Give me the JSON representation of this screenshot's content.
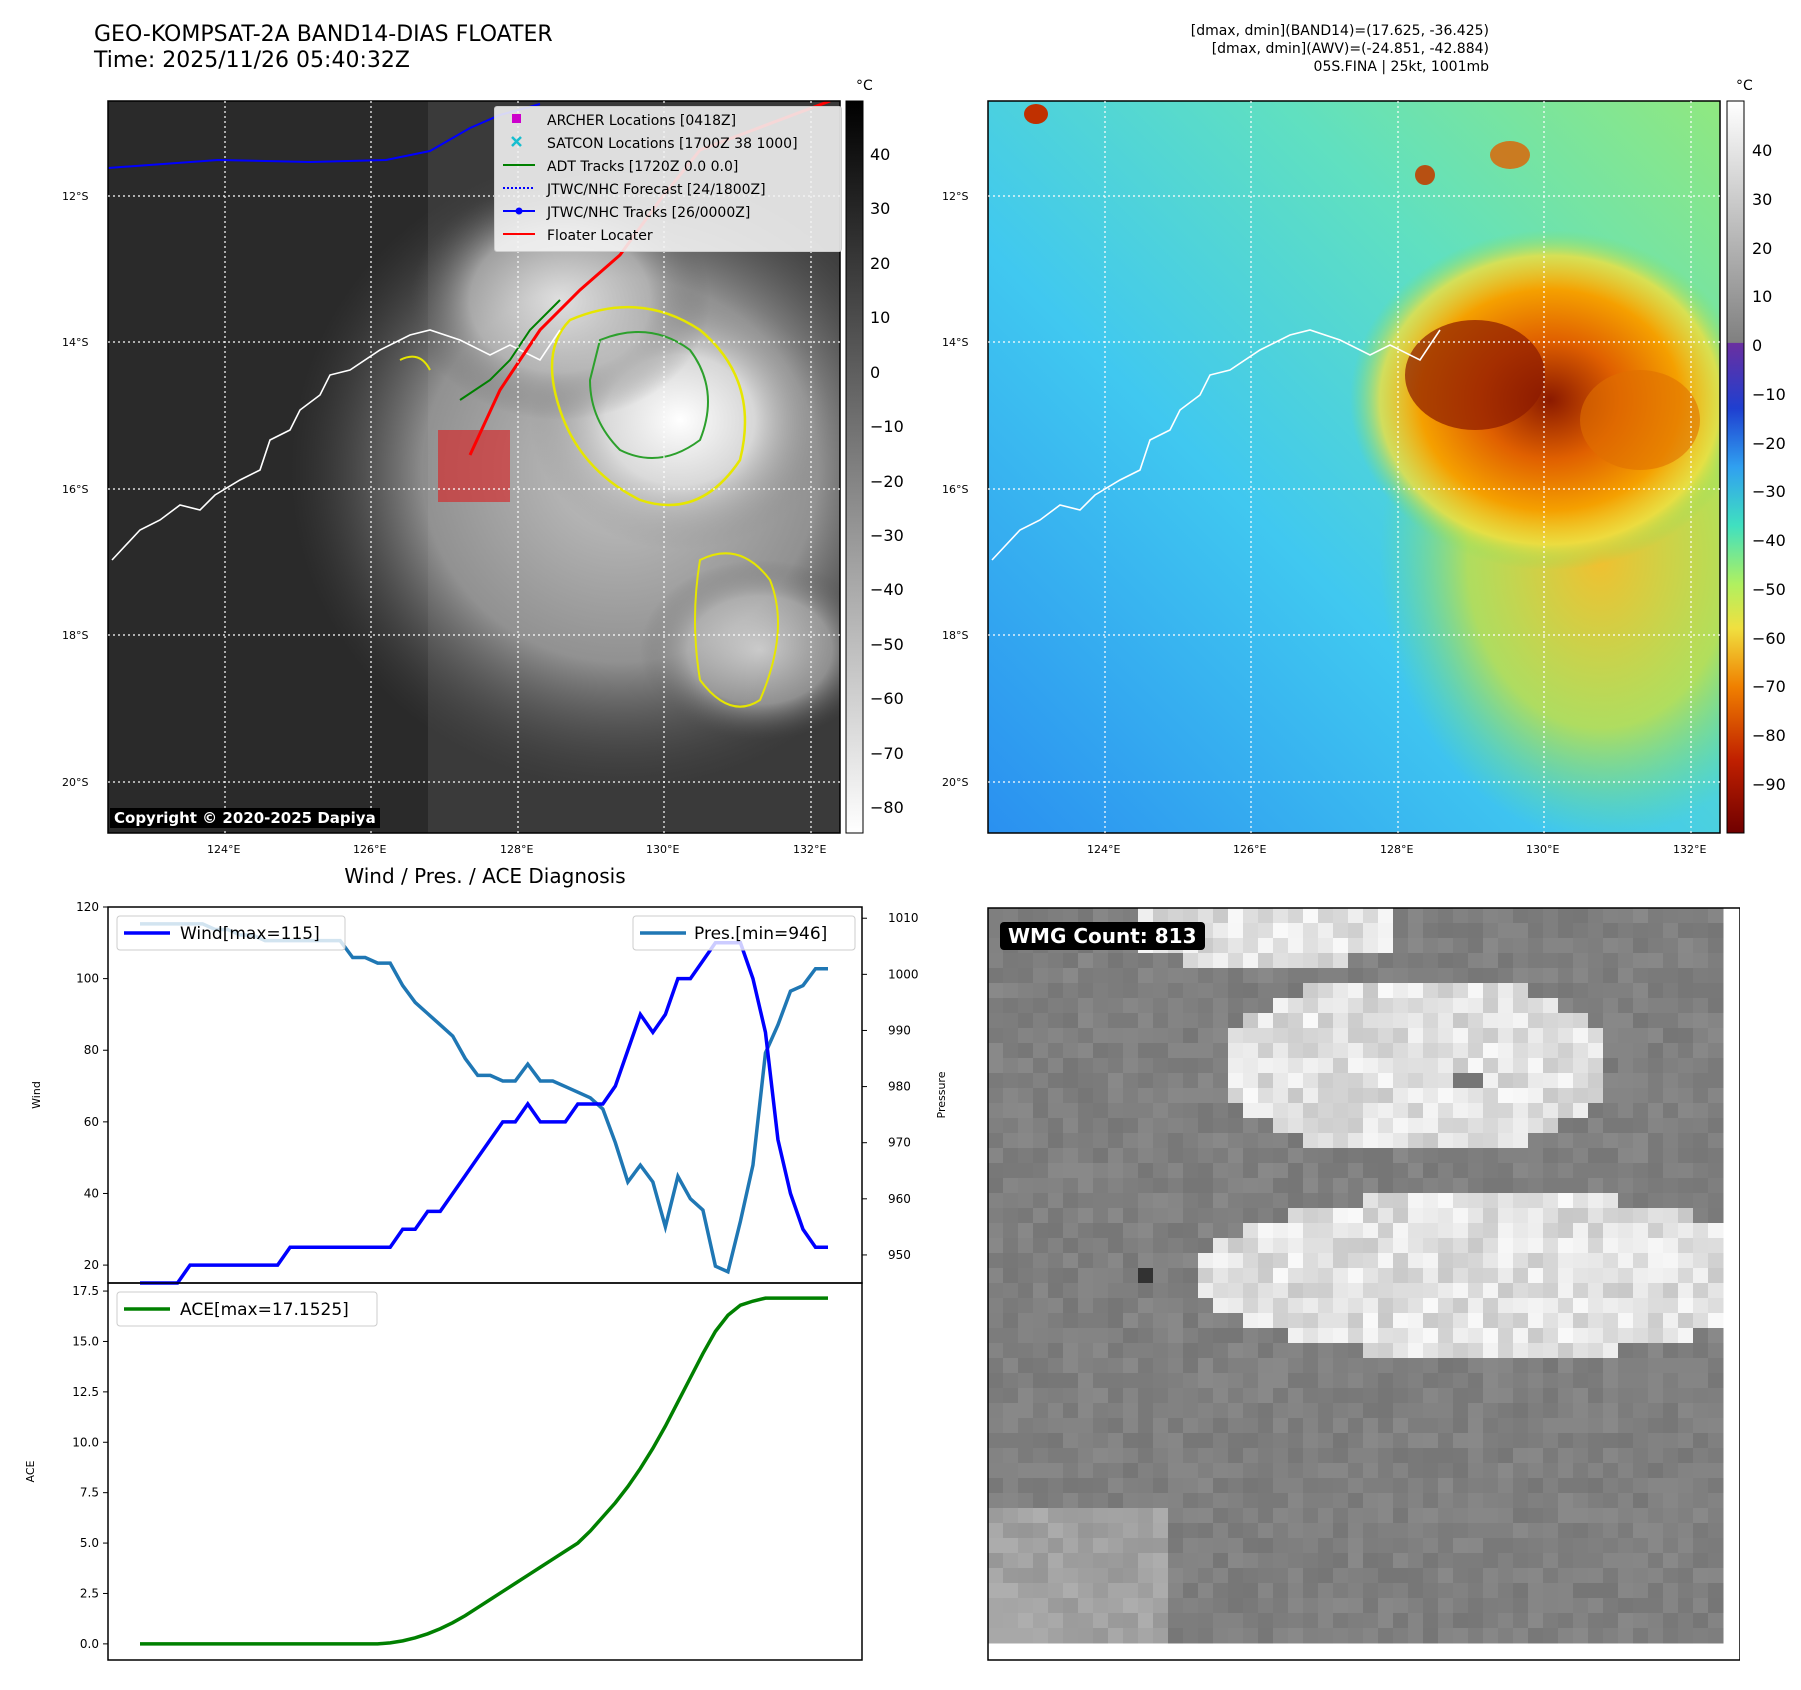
{
  "header": {
    "title_line1": "GEO-KOMPSAT-2A BAND14-DIAS FLOATER",
    "title_line2": "Time: 2025/11/26 05:40:32Z",
    "info_line1": "[dmax, dmin](BAND14)=(17.625, -36.425)",
    "info_line2": "[dmax, dmin](AWV)=(-24.851, -42.884)",
    "info_line3": "05S.FINA | 25kt, 1001mb"
  },
  "maps": {
    "lat_labels": [
      "12°S",
      "14°S",
      "16°S",
      "18°S",
      "20°S"
    ],
    "lon_labels": [
      "124°E",
      "126°E",
      "128°E",
      "130°E",
      "132°E"
    ],
    "copyright": "Copyright © 2020-2025 Dapiya",
    "colorbar1": {
      "unit": "°C",
      "ticks": [
        "40",
        "30",
        "20",
        "10",
        "0",
        "−10",
        "−20",
        "−30",
        "−40",
        "−50",
        "−60",
        "−70",
        "−80"
      ]
    },
    "colorbar2": {
      "unit": "°C",
      "ticks": [
        "40",
        "30",
        "20",
        "10",
        "0",
        "−10",
        "−20",
        "−30",
        "−40",
        "−50",
        "−60",
        "−70",
        "−80",
        "−90"
      ]
    },
    "legend": [
      {
        "label": "ARCHER Locations [0418Z]",
        "color": "#cc00cc",
        "marker": "square"
      },
      {
        "label": "SATCON Locations [1700Z 38 1000]",
        "color": "#17becf",
        "marker": "x"
      },
      {
        "label": "ADT Tracks [1720Z 0.0 0.0]",
        "color": "#008000",
        "marker": "line"
      },
      {
        "label": "JTWC/NHC Forecast [24/1800Z]",
        "color": "#0000ff",
        "marker": "dotted"
      },
      {
        "label": "JTWC/NHC Tracks [26/0000Z]",
        "color": "#0000ff",
        "marker": "line-dot"
      },
      {
        "label": "Floater Locater",
        "color": "#ff0000",
        "marker": "line"
      }
    ],
    "wmg_label": "WMG Count: 813"
  },
  "chart_data": [
    {
      "type": "line",
      "title": "Wind / Pres. / ACE Diagnosis",
      "ylabel": "Wind",
      "y2label": "Pressure",
      "ylim": [
        15,
        120
      ],
      "y2lim": [
        945,
        1012
      ],
      "yticks": [
        20,
        40,
        60,
        80,
        100,
        120
      ],
      "y2ticks": [
        950,
        960,
        970,
        980,
        990,
        1000,
        1010
      ],
      "series": [
        {
          "name": "Wind[max=115]",
          "color": "#0000ff",
          "values": [
            15,
            15,
            15,
            15,
            20,
            20,
            20,
            20,
            20,
            20,
            20,
            20,
            25,
            25,
            25,
            25,
            25,
            25,
            25,
            25,
            25,
            30,
            30,
            35,
            35,
            40,
            45,
            50,
            55,
            60,
            60,
            65,
            60,
            60,
            60,
            65,
            65,
            65,
            70,
            80,
            90,
            85,
            90,
            100,
            100,
            105,
            110,
            110,
            110,
            100,
            85,
            55,
            40,
            30,
            25,
            25
          ]
        },
        {
          "name": "Pres.[min=946]",
          "color": "#1f77b4",
          "axis": "right",
          "values": [
            1009,
            1009,
            1009,
            1009,
            1009,
            1009,
            1008,
            1008,
            1007,
            1007,
            1006,
            1006,
            1006,
            1006,
            1006,
            1006,
            1006,
            1003,
            1003,
            1002,
            1002,
            998,
            995,
            993,
            991,
            989,
            985,
            982,
            982,
            981,
            981,
            984,
            981,
            981,
            980,
            979,
            978,
            976,
            970,
            963,
            966,
            963,
            955,
            964,
            960,
            958,
            948,
            947,
            956,
            966,
            986,
            991,
            997,
            998,
            1001,
            1001
          ]
        }
      ]
    },
    {
      "type": "line",
      "ylabel": "ACE",
      "ylim": [
        -0.8,
        17.9
      ],
      "yticks": [
        0.0,
        2.5,
        5.0,
        7.5,
        10.0,
        12.5,
        15.0,
        17.5
      ],
      "ytick_labels": [
        "0.0",
        "2.5",
        "5.0",
        "7.5",
        "10.0",
        "12.5",
        "15.0",
        "17.5"
      ],
      "series": [
        {
          "name": "ACE[max=17.1525]",
          "color": "#008000",
          "values": [
            0,
            0,
            0,
            0,
            0,
            0,
            0,
            0,
            0,
            0,
            0,
            0,
            0,
            0,
            0,
            0,
            0,
            0,
            0,
            0,
            0.05,
            0.15,
            0.3,
            0.5,
            0.75,
            1.05,
            1.4,
            1.8,
            2.2,
            2.6,
            3.0,
            3.4,
            3.8,
            4.2,
            4.6,
            5.0,
            5.6,
            6.3,
            7.0,
            7.8,
            8.7,
            9.7,
            10.8,
            12.0,
            13.2,
            14.4,
            15.5,
            16.3,
            16.8,
            17.0,
            17.15,
            17.15,
            17.15,
            17.15,
            17.15,
            17.15
          ]
        }
      ]
    }
  ]
}
